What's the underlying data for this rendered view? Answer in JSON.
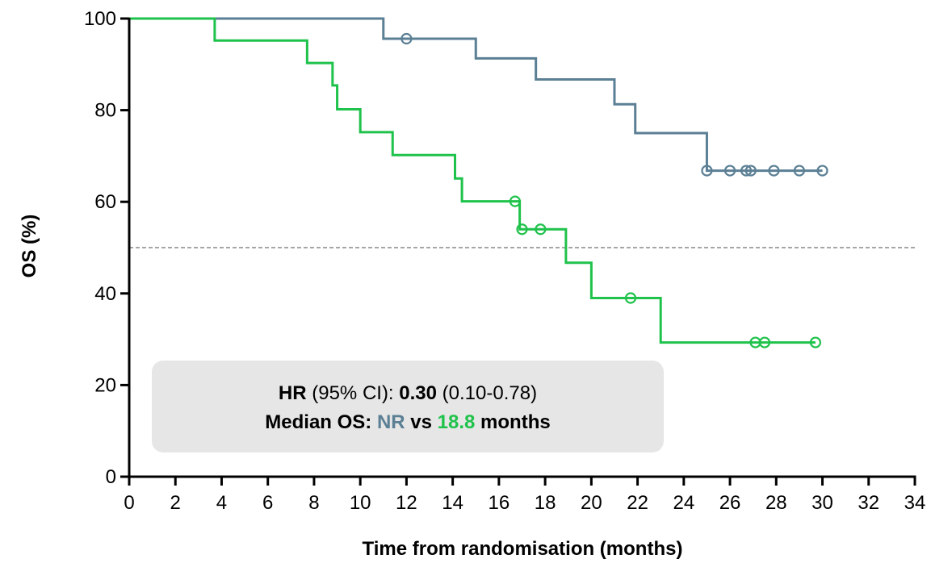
{
  "chart_data": {
    "type": "line",
    "subtype": "kaplan-meier",
    "title": "",
    "xlabel": "Time from randomisation (months)",
    "ylabel": "OS (%)",
    "xlim": [
      0,
      34
    ],
    "ylim": [
      0,
      100
    ],
    "xticks": [
      0,
      2,
      4,
      6,
      8,
      10,
      12,
      14,
      16,
      18,
      20,
      22,
      24,
      26,
      28,
      30,
      32,
      34
    ],
    "yticks": [
      0,
      20,
      40,
      60,
      80,
      100
    ],
    "reference_line": {
      "y": 50,
      "style": "dashed",
      "color": "#888888"
    },
    "grid": false,
    "legend": "none",
    "series": [
      {
        "color": "#5b7f94",
        "steps": [
          [
            0,
            100
          ],
          [
            11,
            95.6
          ],
          [
            15,
            91.3
          ],
          [
            17.6,
            86.7
          ],
          [
            21,
            81.3
          ],
          [
            21.9,
            75
          ],
          [
            25,
            66.8
          ]
        ],
        "end_x": 30,
        "censored": [
          [
            12,
            95.6
          ],
          [
            25,
            66.8
          ],
          [
            26,
            66.8
          ],
          [
            26.7,
            66.8
          ],
          [
            26.9,
            66.8
          ],
          [
            27.9,
            66.8
          ],
          [
            29,
            66.8
          ],
          [
            30,
            66.8
          ]
        ]
      },
      {
        "color": "#1fc24b",
        "steps": [
          [
            0,
            100
          ],
          [
            3.7,
            95.2
          ],
          [
            7.7,
            90.3
          ],
          [
            8.8,
            85.4
          ],
          [
            9.0,
            80.2
          ],
          [
            10,
            75.2
          ],
          [
            11.4,
            70.2
          ],
          [
            14.1,
            65.1
          ],
          [
            14.4,
            60.1
          ],
          [
            16.9,
            54
          ],
          [
            18.9,
            46.7
          ],
          [
            20,
            39
          ],
          [
            23,
            29.3
          ]
        ],
        "end_x": 29.7,
        "censored": [
          [
            16.7,
            60.1
          ],
          [
            17.0,
            54
          ],
          [
            17.8,
            54
          ],
          [
            21.7,
            39
          ],
          [
            27.1,
            29.3
          ],
          [
            27.5,
            29.3
          ],
          [
            29.7,
            29.3
          ]
        ]
      }
    ],
    "annotation": {
      "hr_label": "HR",
      "hr_ci_label": " (95% CI): ",
      "hr_value": "0.30",
      "hr_range": " (0.10-0.78)",
      "median_label": "Median OS: ",
      "median_a": "NR",
      "vs": " vs ",
      "median_b": "18.8",
      "months": " months",
      "box_color": "#e6e6e6"
    }
  }
}
